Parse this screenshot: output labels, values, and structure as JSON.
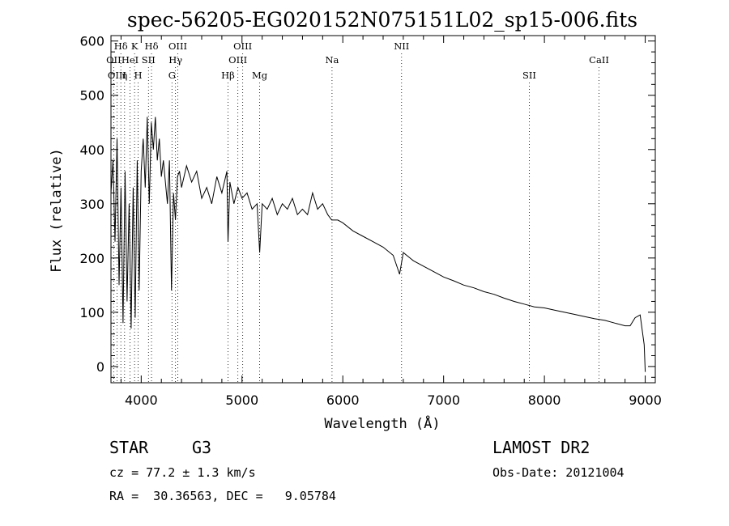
{
  "chart_data": {
    "type": "line",
    "title": "spec-56205-EG020152N075151L02_sp15-006.fits",
    "xlabel": "Wavelength (Å)",
    "ylabel": "Flux (relative)",
    "xlim": [
      3700,
      9100
    ],
    "ylim": [
      -30,
      610
    ],
    "xticks": [
      "4000",
      "5000",
      "6000",
      "7000",
      "8000",
      "9000"
    ],
    "yticks": [
      "0",
      "100",
      "200",
      "300",
      "400",
      "500",
      "600"
    ],
    "grid": false,
    "series": [
      {
        "x": [
          3700,
          3720,
          3740,
          3760,
          3780,
          3800,
          3820,
          3840,
          3860,
          3880,
          3900,
          3920,
          3940,
          3960,
          3980,
          4000,
          4020,
          4040,
          4060,
          4080,
          4100,
          4120,
          4140,
          4160,
          4180,
          4200,
          4220,
          4240,
          4260,
          4280,
          4300,
          4320,
          4340,
          4360,
          4380,
          4400,
          4450,
          4500,
          4550,
          4600,
          4650,
          4700,
          4750,
          4800,
          4850,
          4861,
          4880,
          4920,
          4960,
          5000,
          5050,
          5100,
          5150,
          5175,
          5200,
          5250,
          5300,
          5350,
          5400,
          5450,
          5500,
          5550,
          5600,
          5650,
          5700,
          5750,
          5800,
          5850,
          5890,
          5950,
          6000,
          6100,
          6200,
          6300,
          6400,
          6500,
          6563,
          6600,
          6700,
          6800,
          6900,
          7000,
          7100,
          7200,
          7300,
          7400,
          7500,
          7600,
          7700,
          7800,
          7900,
          8000,
          8100,
          8200,
          8300,
          8400,
          8500,
          8600,
          8700,
          8800,
          8850,
          8900,
          8950,
          8990,
          9000
        ],
        "y": [
          320,
          380,
          230,
          420,
          150,
          330,
          80,
          360,
          120,
          300,
          70,
          330,
          90,
          380,
          140,
          360,
          420,
          330,
          460,
          300,
          450,
          400,
          460,
          380,
          420,
          350,
          380,
          340,
          300,
          380,
          140,
          320,
          270,
          350,
          360,
          330,
          370,
          340,
          360,
          310,
          330,
          300,
          350,
          320,
          360,
          230,
          340,
          300,
          330,
          310,
          320,
          290,
          300,
          210,
          300,
          290,
          310,
          280,
          300,
          290,
          310,
          280,
          290,
          280,
          320,
          290,
          300,
          280,
          270,
          270,
          265,
          250,
          240,
          230,
          220,
          205,
          170,
          210,
          195,
          185,
          175,
          165,
          158,
          150,
          145,
          138,
          133,
          126,
          120,
          115,
          110,
          108,
          104,
          100,
          96,
          92,
          88,
          85,
          80,
          75,
          75,
          90,
          95,
          40,
          -10
        ]
      }
    ],
    "lines": [
      {
        "name": "Hδ",
        "wl": 3798,
        "row": 0
      },
      {
        "name": "OII",
        "wl": 3727,
        "row": 1
      },
      {
        "name": "OIII",
        "wl": 3760,
        "row": 2
      },
      {
        "name": "K",
        "wl": 3934,
        "row": 0
      },
      {
        "name": "HeI",
        "wl": 3889,
        "row": 1
      },
      {
        "name": "η",
        "wl": 3835,
        "row": 2
      },
      {
        "name": "H",
        "wl": 3969,
        "row": 2
      },
      {
        "name": "SII",
        "wl": 4072,
        "row": 1
      },
      {
        "name": "Hδ",
        "wl": 4102,
        "row": 0
      },
      {
        "name": "OIII",
        "wl": 4363,
        "row": 0
      },
      {
        "name": "Hγ",
        "wl": 4340,
        "row": 1
      },
      {
        "name": "G",
        "wl": 4305,
        "row": 2
      },
      {
        "name": "Hβ",
        "wl": 4861,
        "row": 2
      },
      {
        "name": "OIII",
        "wl": 4959,
        "row": 1
      },
      {
        "name": "OIII",
        "wl": 5007,
        "row": 0
      },
      {
        "name": "Mg",
        "wl": 5175,
        "row": 2
      },
      {
        "name": "Na",
        "wl": 5893,
        "row": 1
      },
      {
        "name": "NII",
        "wl": 6583,
        "row": 0
      },
      {
        "name": "SII",
        "wl": 7850,
        "row": 2
      },
      {
        "name": "CaII",
        "wl": 8542,
        "row": 1
      }
    ]
  },
  "info": {
    "object_class": "STAR",
    "subclass": "G3",
    "cz": "cz = 77.2 ± 1.3 km/s",
    "coords": "RA =  30.36563, DEC =   9.05784",
    "survey": "LAMOST DR2",
    "obs_date": "Obs-Date: 20121004"
  },
  "colors": {
    "axis": "#000000",
    "spectrum": "#000000",
    "line_markers": "#000000"
  }
}
